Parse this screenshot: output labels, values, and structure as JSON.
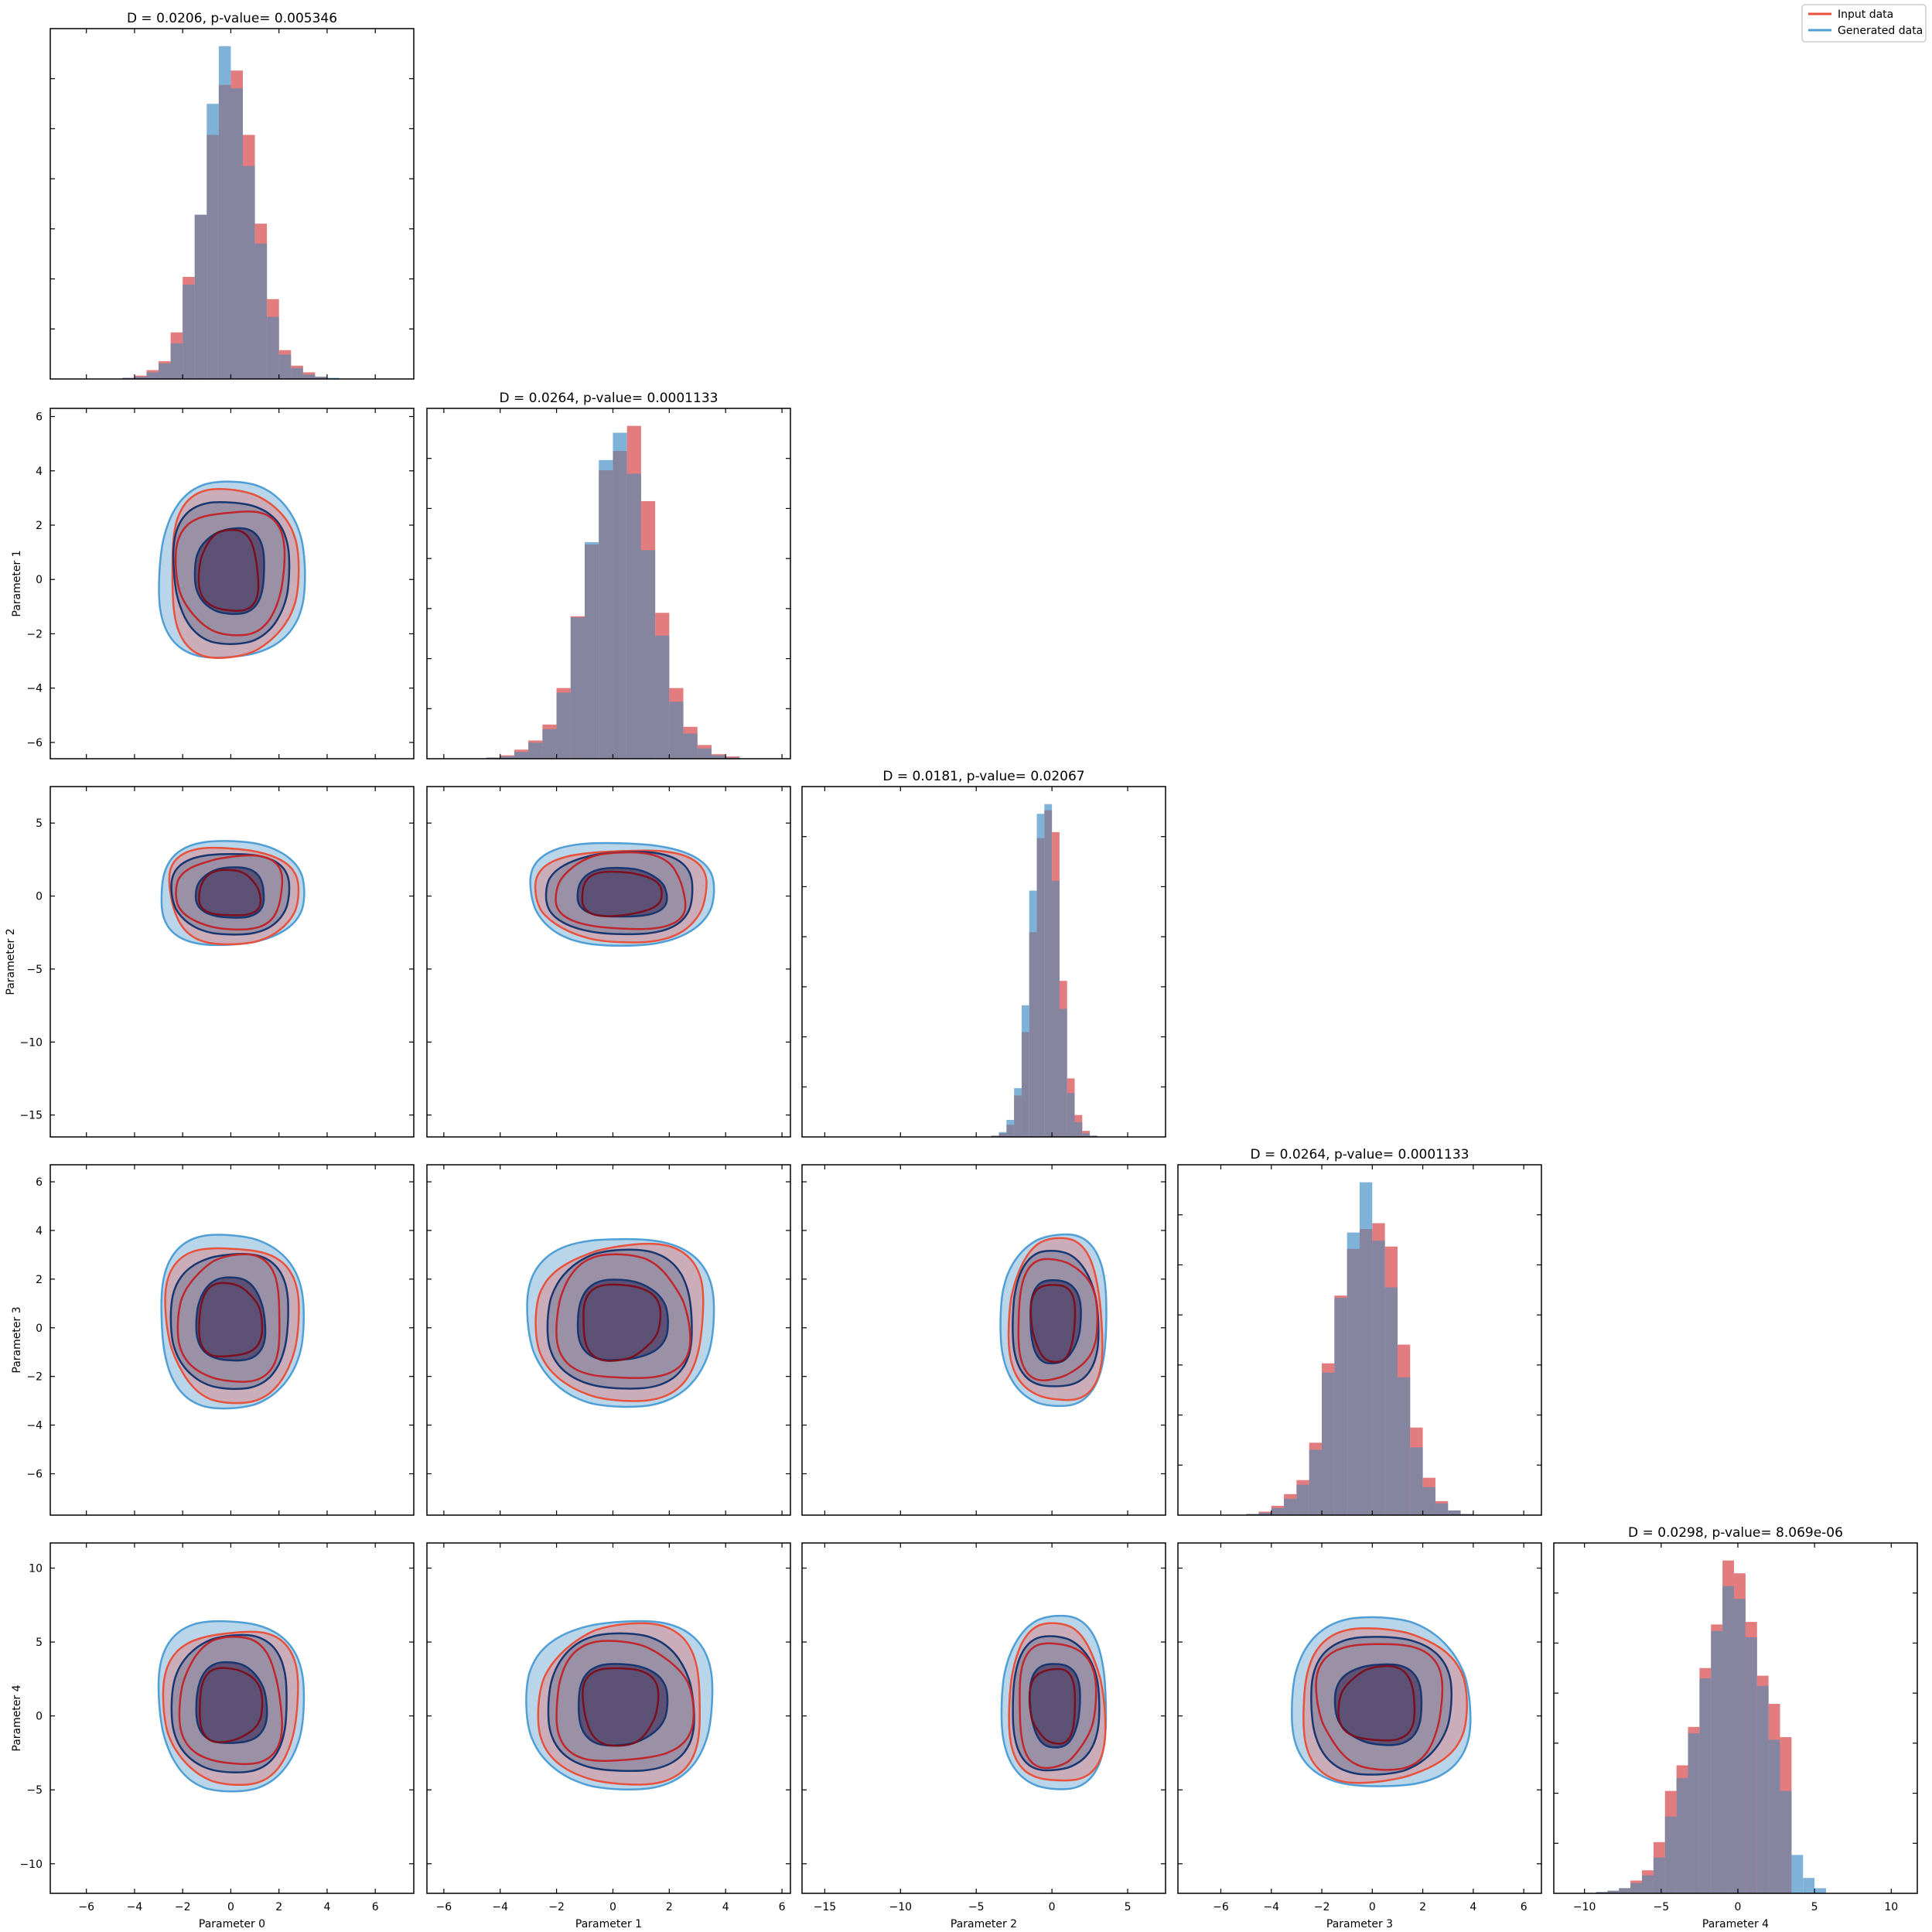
{
  "legend": {
    "placement": "top-right",
    "entries": [
      {
        "label": "Input data",
        "color": "#e8513c"
      },
      {
        "label": "Generated data",
        "color": "#4f9fd6"
      }
    ]
  },
  "colors": {
    "input_fill": "#e37c7f",
    "generated_fill": "#7fb2d9",
    "overlap_fill": "#85859f",
    "input_line": "#e8513c",
    "input_line_dark": "#7a1020",
    "generated_line": "#4f9fd6",
    "generated_line_dark": "#18366f"
  },
  "chart_data": {
    "type": "corner",
    "parameters": [
      "Parameter 0",
      "Parameter 1",
      "Parameter 2",
      "Parameter 3",
      "Parameter 4"
    ],
    "axis_ranges": [
      [
        -7.5,
        7.6
      ],
      [
        -6.6,
        6.3
      ],
      [
        -16.5,
        7.5
      ],
      [
        -7.7,
        6.7
      ],
      [
        -12,
        11.7
      ]
    ],
    "ticks": [
      [
        -6,
        -4,
        -2,
        0,
        2,
        4,
        6
      ],
      [
        -6,
        -4,
        -2,
        0,
        2,
        4,
        6
      ],
      [
        -15,
        -10,
        -5,
        0,
        5
      ],
      [
        -6,
        -4,
        -2,
        0,
        2,
        4,
        6
      ],
      [
        -10,
        -5,
        0,
        5,
        10
      ]
    ],
    "diagonal_titles": [
      "D = 0.0206, p-value= 0.005346",
      "D = 0.0264, p-value= 0.0001133",
      "D = 0.0181, p-value= 0.02067",
      "D = 0.0264, p-value= 0.0001133",
      "D = 0.0298, p-value= 8.069e-06"
    ],
    "histograms": [
      {
        "bin_width": 0.5,
        "bins_start": -4.5,
        "input": [
          1,
          3,
          8,
          16,
          42,
          92,
          148,
          220,
          265,
          278,
          220,
          140,
          72,
          26,
          12,
          6,
          2,
          0,
          0
        ],
        "generated": [
          1,
          2,
          6,
          14,
          32,
          85,
          148,
          248,
          300,
          262,
          192,
          122,
          56,
          22,
          10,
          4,
          2,
          1,
          0
        ]
      },
      {
        "bin_width": 0.5,
        "bins_start": -4.5,
        "input": [
          1,
          3,
          8,
          16,
          30,
          62,
          125,
          188,
          253,
          270,
          292,
          226,
          128,
          62,
          28,
          12,
          4,
          2,
          0
        ],
        "generated": [
          1,
          2,
          6,
          14,
          26,
          58,
          124,
          190,
          262,
          286,
          250,
          183,
          108,
          50,
          22,
          9,
          3,
          1,
          0
        ]
      },
      {
        "bin_width": 0.5,
        "bins_start": -4.0,
        "input": [
          1,
          3,
          10,
          34,
          86,
          168,
          245,
          268,
          250,
          128,
          48,
          18,
          5,
          1,
          0,
          0
        ],
        "generated": [
          1,
          4,
          14,
          40,
          108,
          202,
          265,
          273,
          210,
          105,
          36,
          12,
          3,
          1,
          0,
          0
        ]
      },
      {
        "bin_width": 0.5,
        "bins_start": -5.0,
        "input": [
          1,
          3,
          8,
          18,
          30,
          62,
          130,
          188,
          228,
          245,
          250,
          230,
          146,
          75,
          32,
          12,
          4,
          1,
          0,
          0
        ],
        "generated": [
          1,
          2,
          6,
          14,
          26,
          56,
          122,
          186,
          242,
          285,
          235,
          195,
          118,
          58,
          24,
          10,
          4,
          1,
          0,
          0
        ]
      },
      {
        "bin_width": 0.75,
        "bins_start": -10.0,
        "input": [
          0,
          1,
          2,
          4,
          10,
          18,
          40,
          80,
          100,
          130,
          176,
          210,
          260,
          250,
          212,
          170,
          148,
          122,
          0,
          0,
          0,
          0,
          0,
          0
        ],
        "generated": [
          0,
          1,
          2,
          4,
          8,
          14,
          28,
          60,
          90,
          125,
          168,
          205,
          240,
          230,
          200,
          162,
          120,
          80,
          30,
          12,
          4,
          0,
          0,
          0
        ]
      }
    ]
  }
}
